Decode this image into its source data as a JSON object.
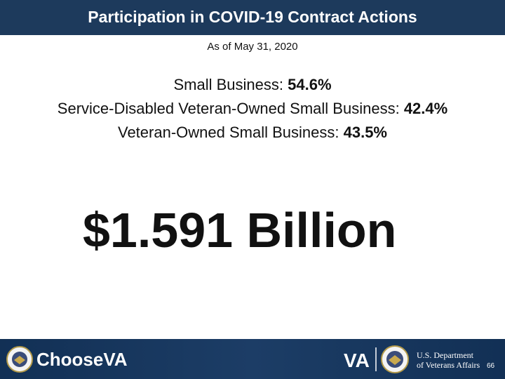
{
  "header": {
    "title": "Participation in COVID-19 Contract Actions"
  },
  "subtitle": "As of May 31, 2020",
  "stats": [
    {
      "label": "Small Business:",
      "value": "54.6%"
    },
    {
      "label": "Service-Disabled Veteran-Owned Small Business:",
      "value": "42.4%"
    },
    {
      "label": "Veteran-Owned Small Business:",
      "value": "43.5%"
    }
  ],
  "headline": "$1.591 Billion",
  "footer": {
    "brand_prefix": "Choose",
    "brand_suffix": "VA",
    "va_mark": "VA",
    "department_line1": "U.S. Department",
    "department_line2": "of Veterans Affairs",
    "page_number": "66"
  }
}
